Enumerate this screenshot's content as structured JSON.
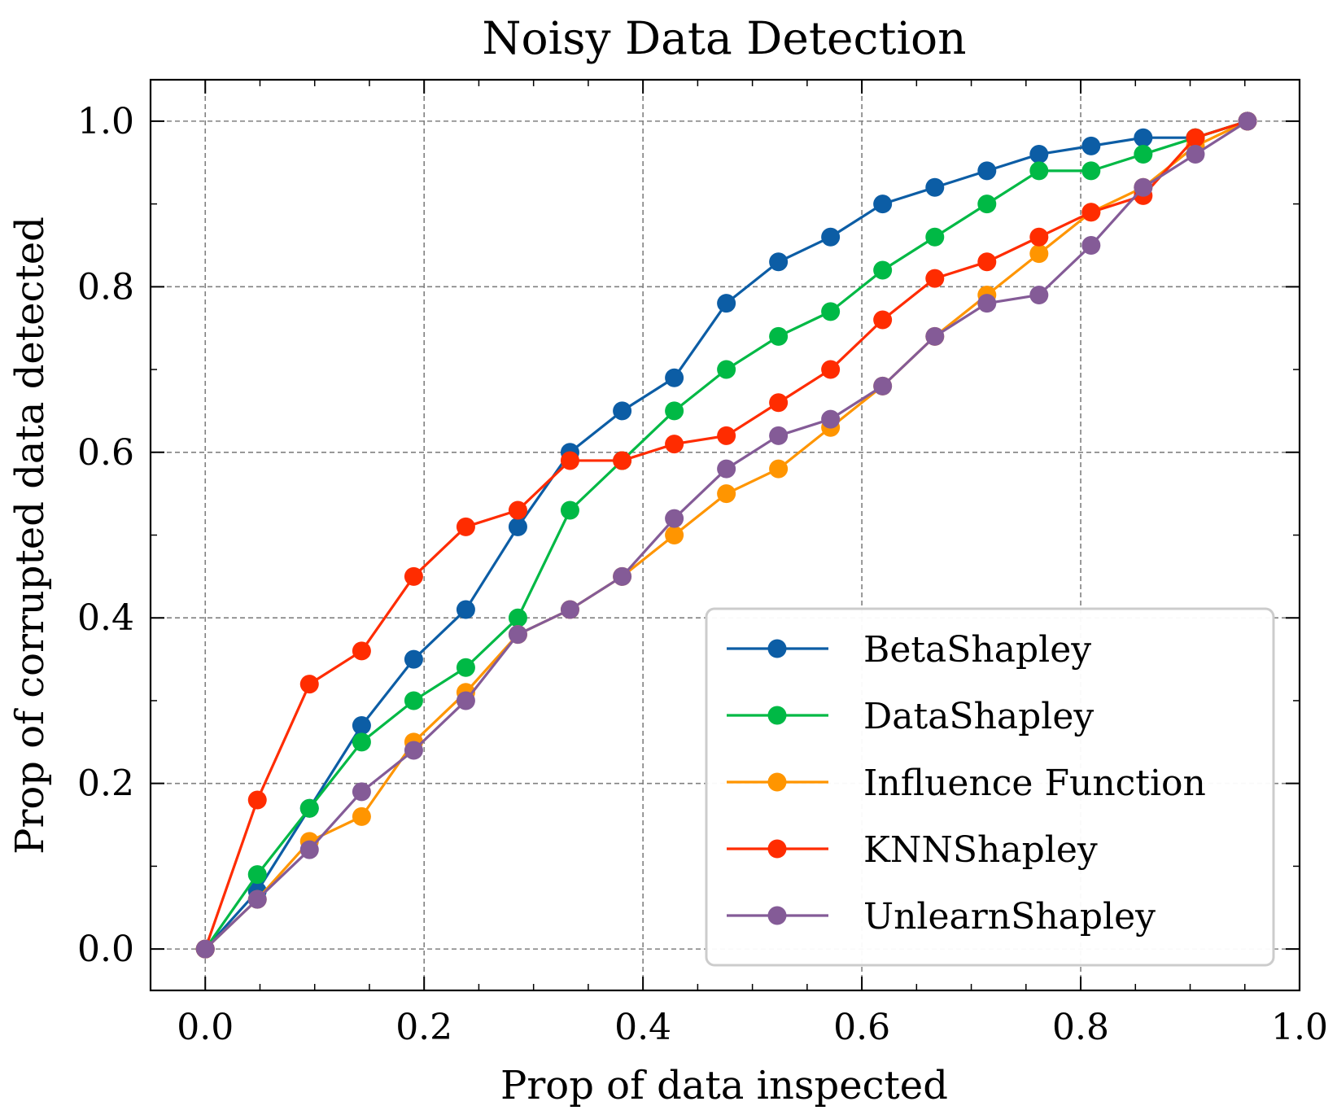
{
  "chart_data": {
    "type": "line",
    "title": "Noisy Data Detection",
    "xlabel": "Prop of data inspected",
    "ylabel": "Prop of corrupted data detected",
    "xlim": [
      -0.05,
      1.0
    ],
    "ylim": [
      -0.05,
      1.05
    ],
    "xticks": [
      0.0,
      0.2,
      0.4,
      0.6,
      0.8,
      1.0
    ],
    "xtick_labels": [
      "0.0",
      "0.2",
      "0.4",
      "0.6",
      "0.8",
      "1.0"
    ],
    "yticks": [
      0.0,
      0.2,
      0.4,
      0.6,
      0.8,
      1.0
    ],
    "ytick_labels": [
      "0.0",
      "0.2",
      "0.4",
      "0.6",
      "0.8",
      "1.0"
    ],
    "grid": true,
    "legend_position": "lower-right",
    "x": [
      0.0,
      0.0476,
      0.0952,
      0.1429,
      0.1905,
      0.2381,
      0.2857,
      0.3333,
      0.381,
      0.4286,
      0.4762,
      0.5238,
      0.5714,
      0.619,
      0.6667,
      0.7143,
      0.7619,
      0.8095,
      0.8571,
      0.9048,
      0.9524
    ],
    "series": [
      {
        "name": "BetaShapley",
        "color": "#0C5DA5",
        "values": [
          0.0,
          0.07,
          0.17,
          0.27,
          0.35,
          0.41,
          0.51,
          0.6,
          0.65,
          0.69,
          0.78,
          0.83,
          0.86,
          0.9,
          0.92,
          0.94,
          0.96,
          0.97,
          0.98,
          0.98,
          1.0
        ]
      },
      {
        "name": "DataShapley",
        "color": "#00B945",
        "values": [
          0.0,
          0.09,
          0.17,
          0.25,
          0.3,
          0.34,
          0.4,
          0.53,
          0.59,
          0.65,
          0.7,
          0.74,
          0.77,
          0.82,
          0.86,
          0.9,
          0.94,
          0.94,
          0.96,
          0.98,
          1.0
        ]
      },
      {
        "name": "Influence Function",
        "color": "#FF9500",
        "values": [
          0.0,
          0.06,
          0.13,
          0.16,
          0.25,
          0.31,
          0.38,
          0.41,
          0.45,
          0.5,
          0.55,
          0.58,
          0.63,
          0.68,
          0.74,
          0.79,
          0.84,
          0.89,
          0.92,
          0.97,
          1.0
        ]
      },
      {
        "name": "KNNShapley",
        "color": "#FF2C00",
        "values": [
          0.0,
          0.18,
          0.32,
          0.36,
          0.45,
          0.51,
          0.53,
          0.59,
          0.59,
          0.61,
          0.62,
          0.66,
          0.7,
          0.76,
          0.81,
          0.83,
          0.86,
          0.89,
          0.91,
          0.98,
          1.0
        ]
      },
      {
        "name": "UnlearnShapley",
        "color": "#845B97",
        "values": [
          0.0,
          0.06,
          0.12,
          0.19,
          0.24,
          0.3,
          0.38,
          0.41,
          0.45,
          0.52,
          0.58,
          0.62,
          0.64,
          0.68,
          0.74,
          0.78,
          0.79,
          0.85,
          0.92,
          0.96,
          1.0
        ]
      }
    ]
  }
}
